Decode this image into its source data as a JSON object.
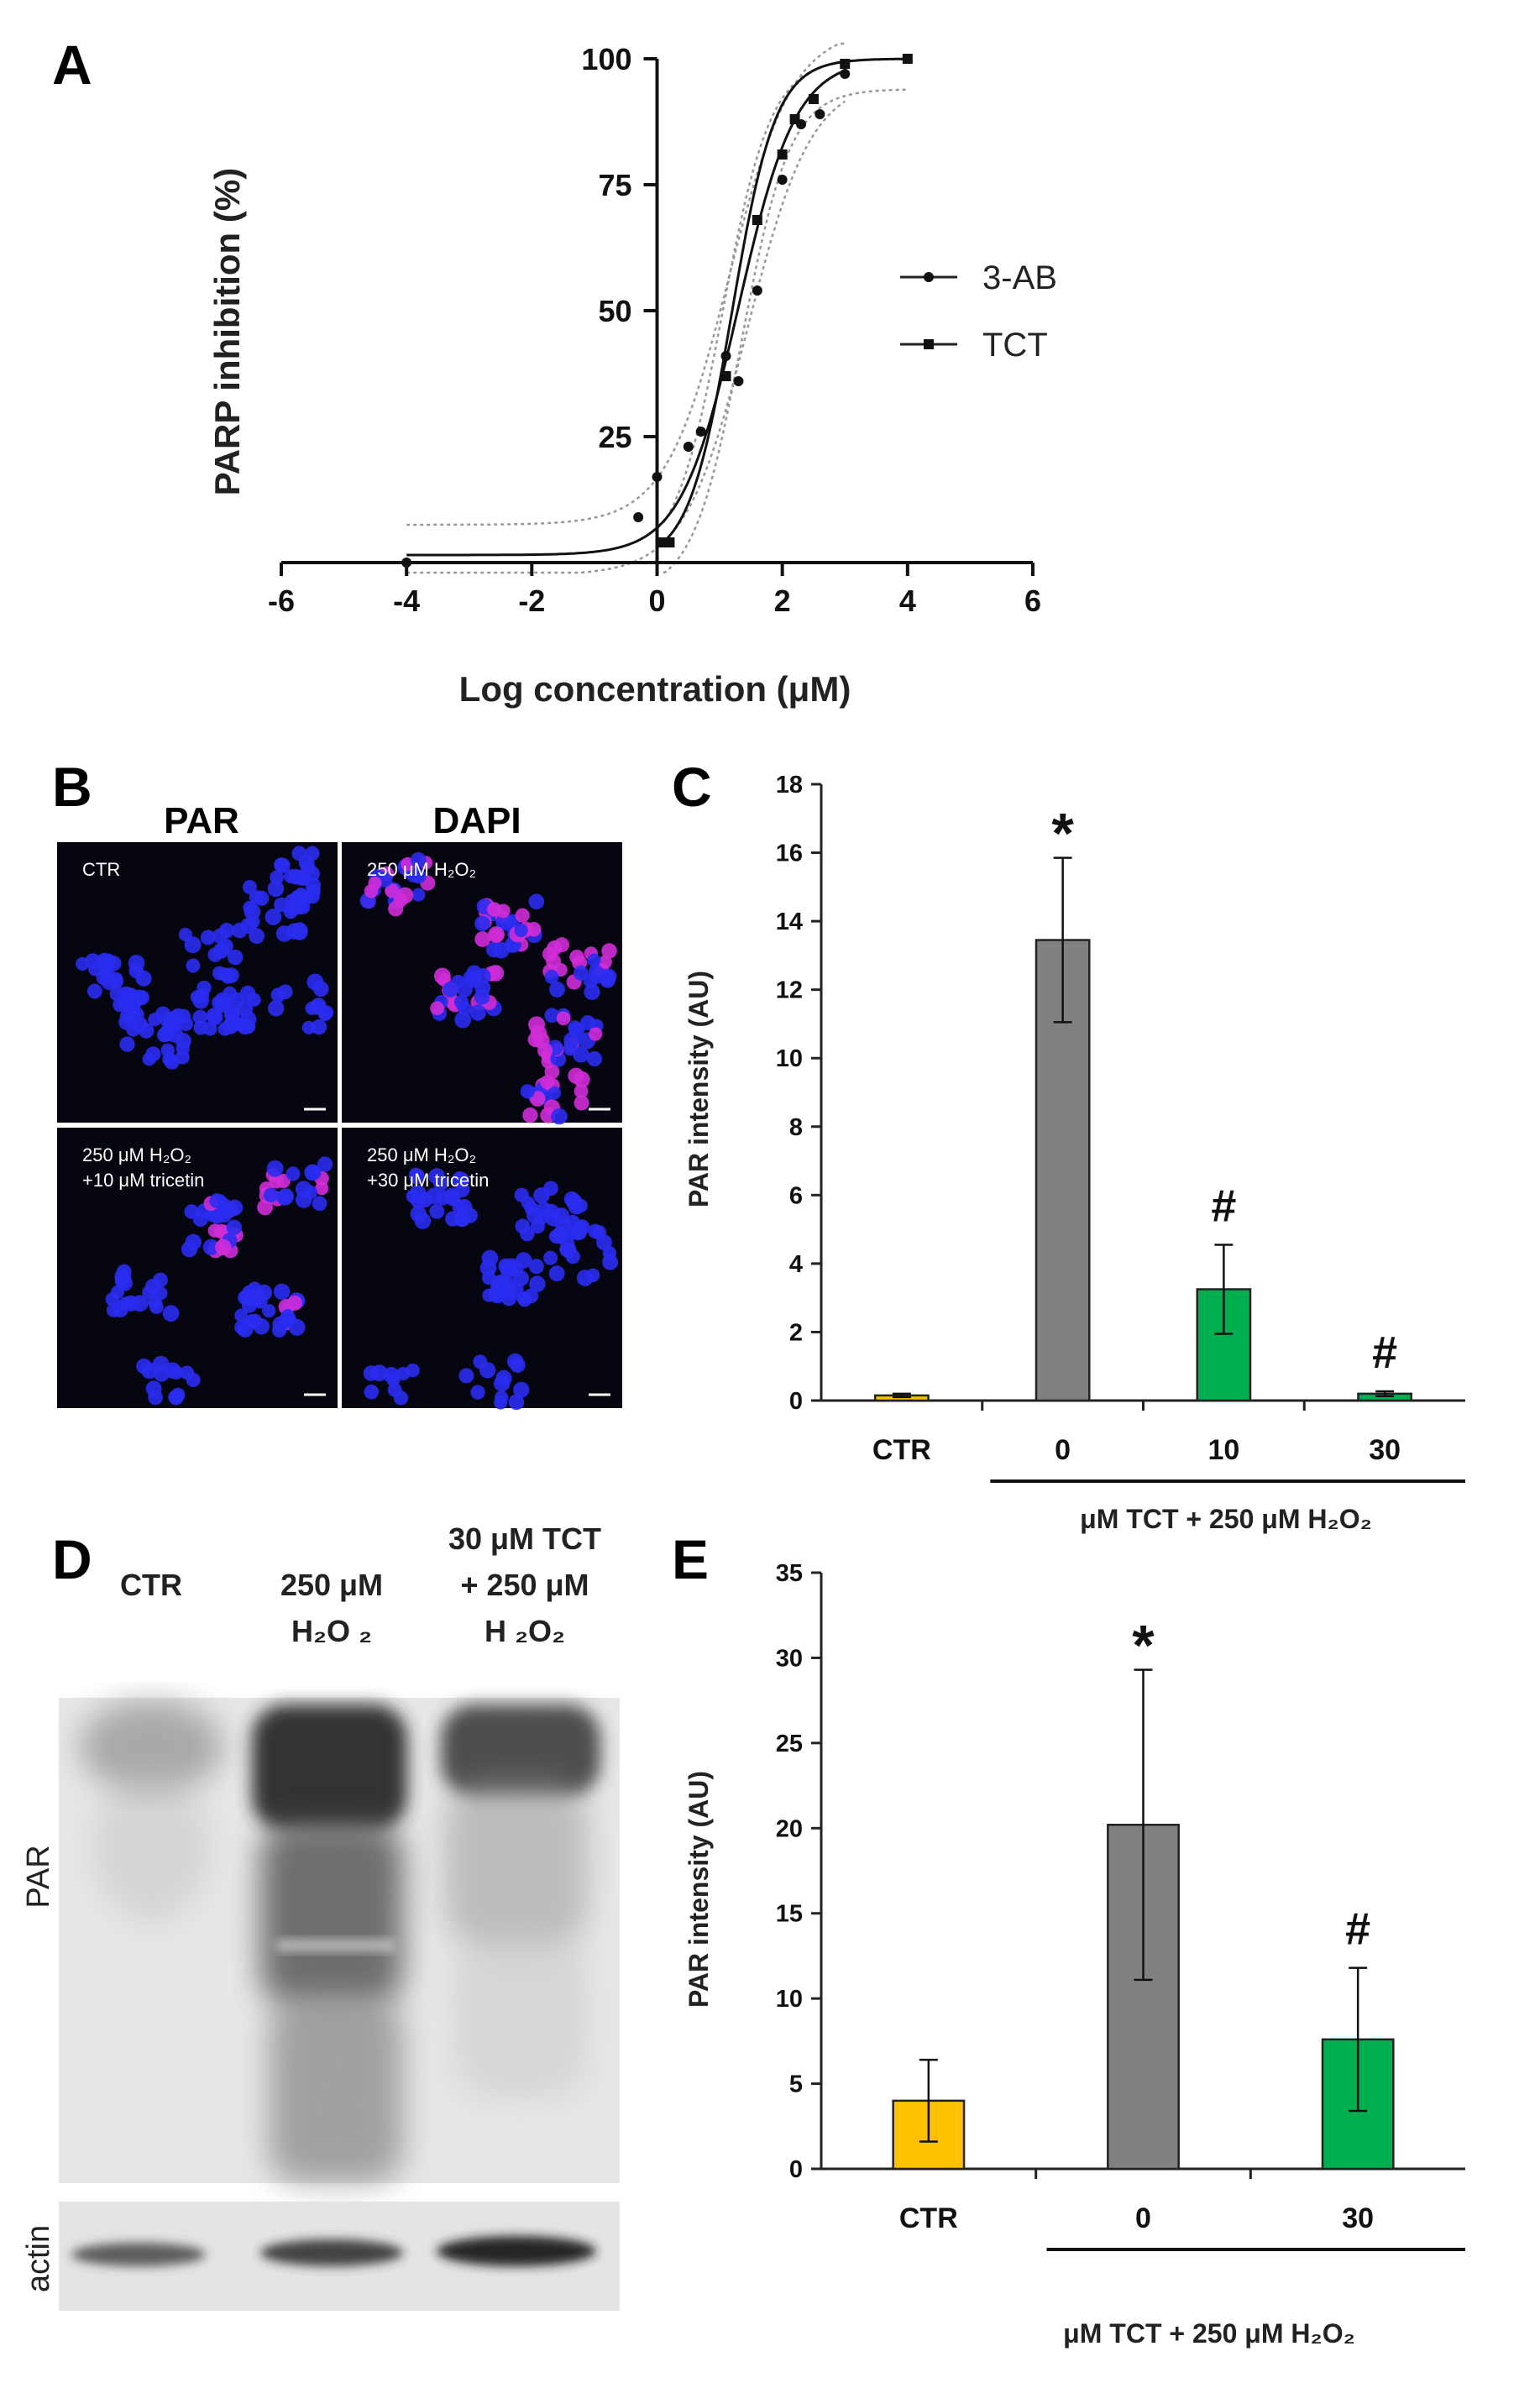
{
  "panels": {
    "a": {
      "label": "A"
    },
    "b": {
      "label": "B",
      "channel1": "PAR",
      "channel2": "DAPI",
      "channel1_color": "#e8231f",
      "channel2_color": "#1f6fc6",
      "images": [
        {
          "line1": "CTR",
          "line2": ""
        },
        {
          "line1": "250 μM H₂O₂",
          "line2": ""
        },
        {
          "line1": "250 μM H₂O₂",
          "line2": "+10 μM tricetin"
        },
        {
          "line1": "250 μM H₂O₂",
          "line2": "+30 μM tricetin"
        }
      ]
    },
    "c": {
      "label": "C"
    },
    "d": {
      "label": "D",
      "lanes": [
        {
          "line1": "",
          "line2": "CTR",
          "line3": ""
        },
        {
          "line1": "",
          "line2": "250 μM",
          "line3": "H₂O ₂"
        },
        {
          "line1": "30 μM TCT",
          "line2": "+ 250 μM",
          "line3": "H ₂O₂"
        }
      ],
      "row_par": "PAR",
      "row_actin": "actin"
    },
    "e": {
      "label": "E"
    }
  },
  "chart_data": [
    {
      "type": "line",
      "panel": "A",
      "xlabel": "Log concentration (μM)",
      "ylabel": "PARP inhibition (%)",
      "xlim": [
        -6,
        6
      ],
      "ylim": [
        0,
        100
      ],
      "xticks": [
        "-6",
        "-4",
        "-2",
        "0",
        "2",
        "4",
        "6"
      ],
      "yticks": [
        "25",
        "50",
        "75",
        "100"
      ],
      "legend_position": "right",
      "series": [
        {
          "name": "3-AB",
          "marker": "circle",
          "x": [
            -4,
            -0.3,
            0,
            0.5,
            0.7,
            1.1,
            1.3,
            1.6,
            2.0,
            2.3,
            2.6,
            3.0
          ],
          "y": [
            0,
            9,
            17,
            23,
            26,
            41,
            36,
            54,
            76,
            87,
            89,
            97
          ],
          "fit": {
            "bottom": 1.5,
            "top": 100,
            "logec50": 1.3,
            "hill": 0.95
          }
        },
        {
          "name": "TCT",
          "marker": "square",
          "x": [
            0.1,
            0.2,
            1.1,
            1.6,
            2.0,
            2.2,
            2.5,
            3.0,
            4.0
          ],
          "y": [
            4,
            4,
            37,
            68,
            81,
            88,
            92,
            99,
            100
          ],
          "fit": {
            "bottom": 0,
            "top": 100,
            "logec50": 1.2,
            "hill": 1.25
          }
        }
      ]
    },
    {
      "type": "bar",
      "panel": "C",
      "ylabel": "PAR intensity (AU)",
      "ylim": [
        0,
        18
      ],
      "yticks": [
        "0",
        "2",
        "4",
        "6",
        "8",
        "10",
        "12",
        "14",
        "16",
        "18"
      ],
      "categories": [
        "CTR",
        "0",
        "10",
        "30"
      ],
      "values": [
        0.15,
        13.45,
        3.25,
        0.2
      ],
      "errors": [
        0.05,
        2.4,
        1.3,
        0.07
      ],
      "colors": [
        "#ffc000",
        "#808080",
        "#00b050",
        "#00b050"
      ],
      "annotations": [
        "",
        "*",
        "#",
        "#"
      ],
      "group_label": "μM TCT + 250 μM H₂O₂"
    },
    {
      "type": "bar",
      "panel": "E",
      "ylabel": "PAR intensity (AU)",
      "ylim": [
        0,
        35
      ],
      "yticks": [
        "0",
        "5",
        "10",
        "15",
        "20",
        "25",
        "30",
        "35"
      ],
      "categories": [
        "CTR",
        "0",
        "30"
      ],
      "values": [
        4.0,
        20.2,
        7.6
      ],
      "errors": [
        2.4,
        9.1,
        4.2
      ],
      "colors": [
        "#ffc000",
        "#808080",
        "#00b050"
      ],
      "annotations": [
        "",
        "*",
        "#"
      ],
      "group_label": "μM TCT + 250 μM H₂O₂"
    }
  ]
}
